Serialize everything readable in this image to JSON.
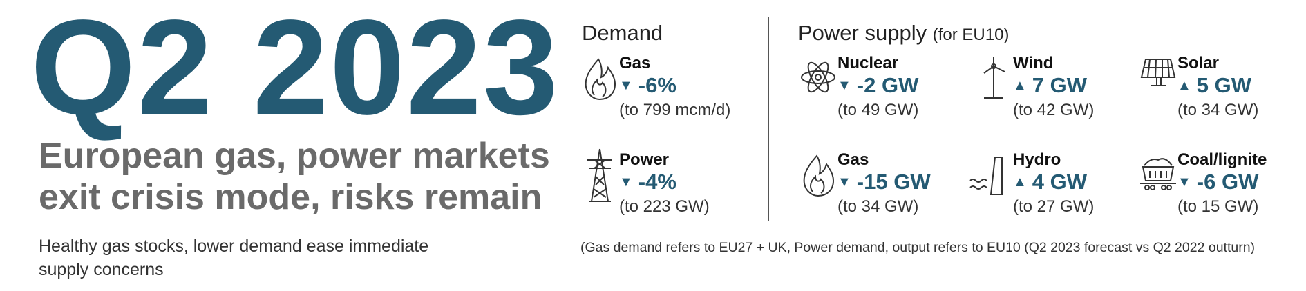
{
  "title": "Q2 2023",
  "subtitle_lines": [
    "European gas, power markets",
    "exit crisis mode, risks remain"
  ],
  "lead_lines": [
    "Healthy gas stocks, lower demand ease immediate",
    "supply concerns"
  ],
  "colors": {
    "accent": "#245a73",
    "subtitle": "#6a6a6a"
  },
  "demand": {
    "heading": "Demand",
    "items": [
      {
        "label": "Gas",
        "arrow": "▼",
        "value": "-6%",
        "to": "(to 799 mcm/d)",
        "icon": "flame-icon"
      },
      {
        "label": "Power",
        "arrow": "▼",
        "value": "-4%",
        "to": "(to 223 GW)",
        "icon": "pylon-icon"
      }
    ]
  },
  "supply": {
    "heading": "Power supply",
    "heading_note": "(for EU10)",
    "items": [
      {
        "label": "Nuclear",
        "arrow": "▼",
        "value": "-2 GW",
        "to": "(to 49 GW)",
        "icon": "atom-icon"
      },
      {
        "label": "Wind",
        "arrow": "▲",
        "value": "7 GW",
        "to": "(to 42 GW)",
        "icon": "wind-turbine-icon"
      },
      {
        "label": "Solar",
        "arrow": "▲",
        "value": "5 GW",
        "to": "(to 34 GW)",
        "icon": "solar-panel-icon"
      },
      {
        "label": "Gas",
        "arrow": "▼",
        "value": "-15 GW",
        "to": "(to 34 GW)",
        "icon": "flame-icon"
      },
      {
        "label": "Hydro",
        "arrow": "▲",
        "value": "4 GW",
        "to": "(to 27 GW)",
        "icon": "dam-icon"
      },
      {
        "label": "Coal/lignite",
        "arrow": "▼",
        "value": "-6 GW",
        "to": "(to 15 GW)",
        "icon": "coal-wagon-icon"
      }
    ]
  },
  "footnote": "(Gas demand refers to EU27 + UK, Power demand, output refers to EU10 (Q2 2023 forecast vs Q2 2022 outturn)"
}
